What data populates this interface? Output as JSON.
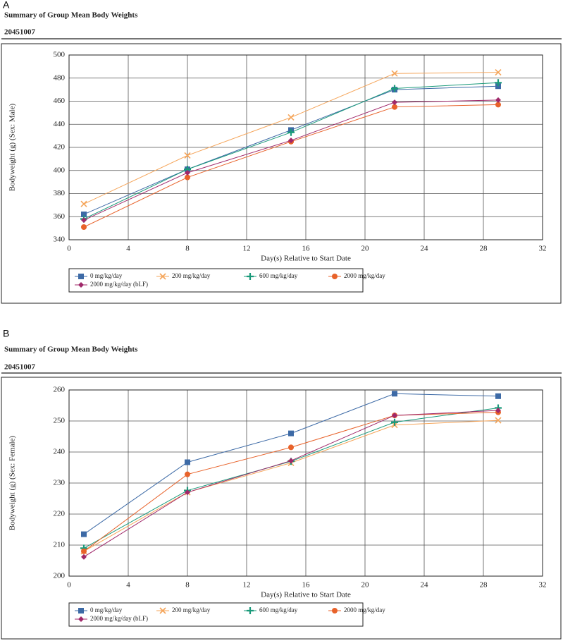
{
  "chart_data": [
    {
      "type": "line",
      "panel_label": "A",
      "title": "Summary of Group Mean Body Weights",
      "subtitle": "20451007",
      "x_label": "Day(s) Relative to Start Date",
      "y_label": "Bodyweight (g) (Sex: Male)",
      "x": [
        1,
        8,
        15,
        22,
        29
      ],
      "series": [
        {
          "name": "0 mg/kg/day",
          "color": "#3d6aa6",
          "marker": "square",
          "values": [
            362,
            401,
            435,
            470,
            473
          ]
        },
        {
          "name": "200 mg/kg/day",
          "color": "#f5a55a",
          "marker": "x",
          "values": [
            371,
            413,
            446,
            484,
            485
          ]
        },
        {
          "name": "600 mg/kg/day",
          "color": "#1a9a7a",
          "marker": "plus",
          "values": [
            358,
            401,
            433,
            471,
            476
          ]
        },
        {
          "name": "2000 mg/kg/day",
          "color": "#e8622a",
          "marker": "circle",
          "values": [
            351,
            394,
            425,
            455,
            457
          ]
        },
        {
          "name": "2000 mg/kg/day (bLF)",
          "color": "#a0286a",
          "marker": "diamond",
          "values": [
            357,
            398,
            426,
            459,
            461
          ]
        }
      ],
      "xlim": [
        0,
        32
      ],
      "xticks": [
        0,
        4,
        8,
        12,
        16,
        20,
        24,
        28,
        32
      ],
      "ylim": [
        340,
        500
      ],
      "yticks": [
        340,
        360,
        380,
        400,
        420,
        440,
        460,
        480,
        500
      ],
      "grid": true,
      "legend": "bottom"
    },
    {
      "type": "line",
      "panel_label": "B",
      "title": "Summary of Group Mean Body Weights",
      "subtitle": "20451007",
      "x_label": "Day(s) Relative to Start Date",
      "y_label": "Bodyweight (g) (Sex: Female)",
      "x": [
        1,
        8,
        15,
        22,
        29
      ],
      "series": [
        {
          "name": "0 mg/kg/day",
          "color": "#3d6aa6",
          "marker": "square",
          "values": [
            213.5,
            236.7,
            246,
            258.8,
            258
          ]
        },
        {
          "name": "200 mg/kg/day",
          "color": "#f5a55a",
          "marker": "x",
          "values": [
            208,
            227,
            236.5,
            248.7,
            250.2
          ]
        },
        {
          "name": "600 mg/kg/day",
          "color": "#1a9a7a",
          "marker": "plus",
          "values": [
            209,
            227.6,
            237,
            249.6,
            254.2
          ]
        },
        {
          "name": "2000 mg/kg/day",
          "color": "#e8622a",
          "marker": "circle",
          "values": [
            208,
            232.8,
            241.5,
            251.8,
            252.8
          ]
        },
        {
          "name": "2000 mg/kg/day (bLF)",
          "color": "#a0286a",
          "marker": "diamond",
          "values": [
            206.2,
            227,
            237.2,
            251.8,
            253.4
          ]
        }
      ],
      "xlim": [
        0,
        32
      ],
      "xticks": [
        0,
        4,
        8,
        12,
        16,
        20,
        24,
        28,
        32
      ],
      "ylim": [
        200,
        260
      ],
      "yticks": [
        200,
        210,
        220,
        230,
        240,
        250,
        260
      ],
      "grid": true,
      "legend": "bottom"
    }
  ]
}
